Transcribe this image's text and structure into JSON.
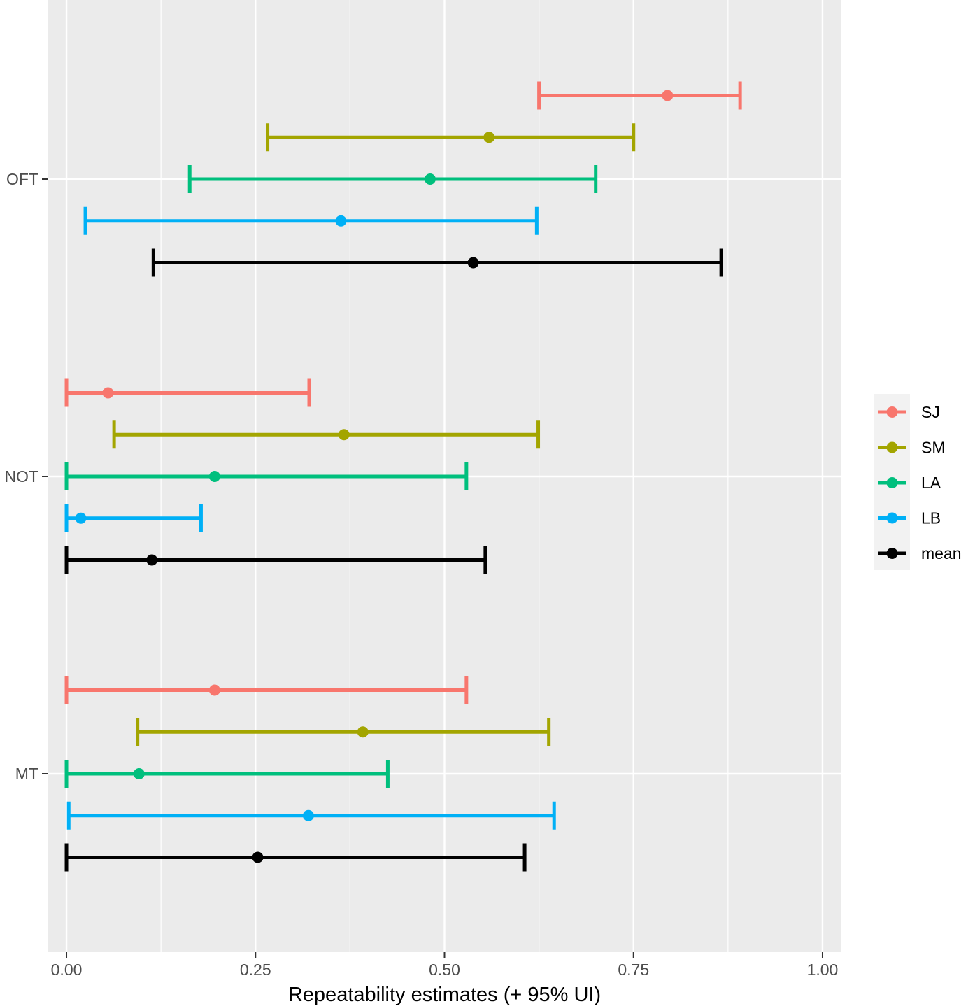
{
  "chart_data": {
    "type": "errorbar",
    "orientation": "horizontal",
    "title": "",
    "xlabel": "Repeatability estimates (+ 95% UI)",
    "ylabel": "",
    "xlim": [
      -0.025,
      1.025
    ],
    "xticks": [
      0,
      0.25,
      0.5,
      0.75,
      1
    ],
    "xtick_labels": [
      "0.00",
      "0.25",
      "0.50",
      "0.75",
      "1.00"
    ],
    "categories": [
      "OFT",
      "NOT",
      "MT"
    ],
    "grid": true,
    "legend_position": "right",
    "series": [
      {
        "name": "SJ",
        "color": "#F8766D",
        "points": [
          {
            "category": "OFT",
            "estimate": 0.795,
            "lower": 0.625,
            "upper": 0.891
          },
          {
            "category": "NOT",
            "estimate": 0.055,
            "lower": 0.0,
            "upper": 0.321
          },
          {
            "category": "MT",
            "estimate": 0.196,
            "lower": 0.0,
            "upper": 0.529
          }
        ]
      },
      {
        "name": "SM",
        "color": "#A3A500",
        "points": [
          {
            "category": "OFT",
            "estimate": 0.559,
            "lower": 0.266,
            "upper": 0.75
          },
          {
            "category": "NOT",
            "estimate": 0.367,
            "lower": 0.063,
            "upper": 0.624
          },
          {
            "category": "MT",
            "estimate": 0.392,
            "lower": 0.094,
            "upper": 0.638
          }
        ]
      },
      {
        "name": "LA",
        "color": "#00BF7D",
        "points": [
          {
            "category": "OFT",
            "estimate": 0.481,
            "lower": 0.163,
            "upper": 0.7
          },
          {
            "category": "NOT",
            "estimate": 0.196,
            "lower": 0.0,
            "upper": 0.529
          },
          {
            "category": "MT",
            "estimate": 0.096,
            "lower": 0.0,
            "upper": 0.425
          }
        ]
      },
      {
        "name": "LB",
        "color": "#00B0F6",
        "points": [
          {
            "category": "OFT",
            "estimate": 0.363,
            "lower": 0.025,
            "upper": 0.622
          },
          {
            "category": "NOT",
            "estimate": 0.019,
            "lower": 0.0,
            "upper": 0.178
          },
          {
            "category": "MT",
            "estimate": 0.32,
            "lower": 0.003,
            "upper": 0.645
          }
        ]
      },
      {
        "name": "mean",
        "color": "#000000",
        "points": [
          {
            "category": "OFT",
            "estimate": 0.538,
            "lower": 0.115,
            "upper": 0.866
          },
          {
            "category": "NOT",
            "estimate": 0.113,
            "lower": 0.0,
            "upper": 0.554
          },
          {
            "category": "MT",
            "estimate": 0.253,
            "lower": 0.0,
            "upper": 0.606
          }
        ]
      }
    ]
  }
}
